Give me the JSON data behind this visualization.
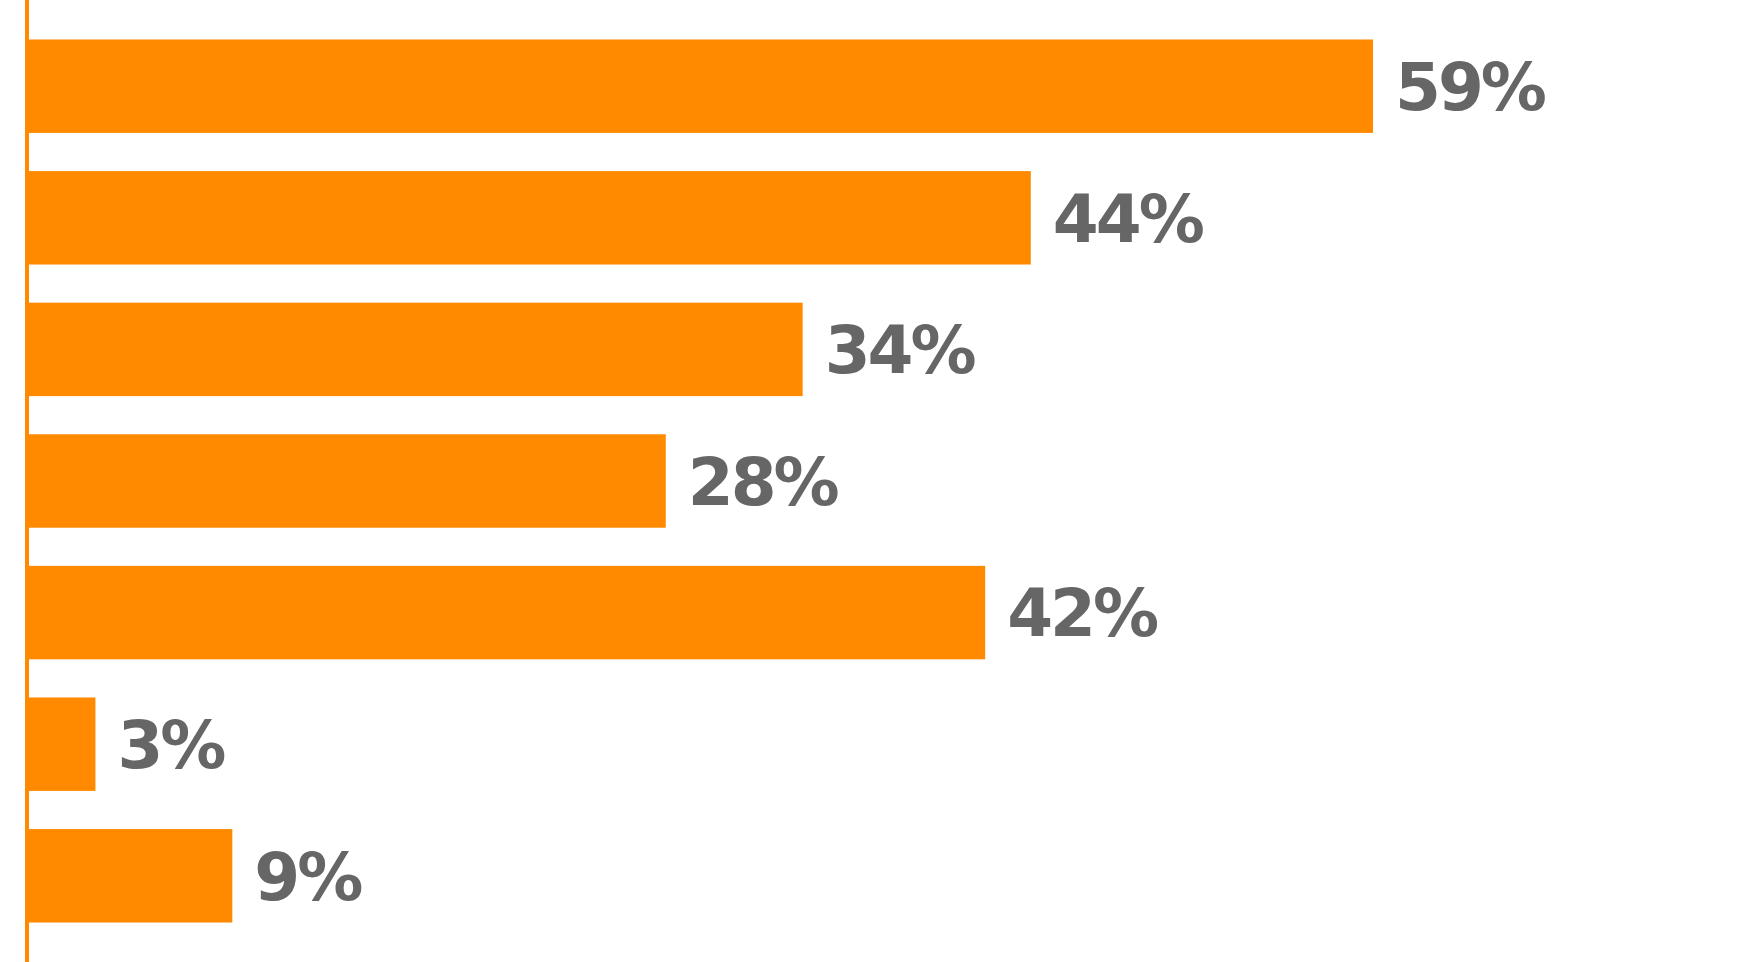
{
  "chart_data": {
    "type": "bar",
    "orientation": "horizontal",
    "categories": [
      null,
      null,
      null,
      null,
      null,
      null,
      null
    ],
    "values": [
      59,
      44,
      34,
      28,
      42,
      3,
      9
    ],
    "value_labels": [
      "59%",
      "44%",
      "34%",
      "28%",
      "42%",
      "3%",
      "9%"
    ],
    "color": "#ff8a00"
  }
}
